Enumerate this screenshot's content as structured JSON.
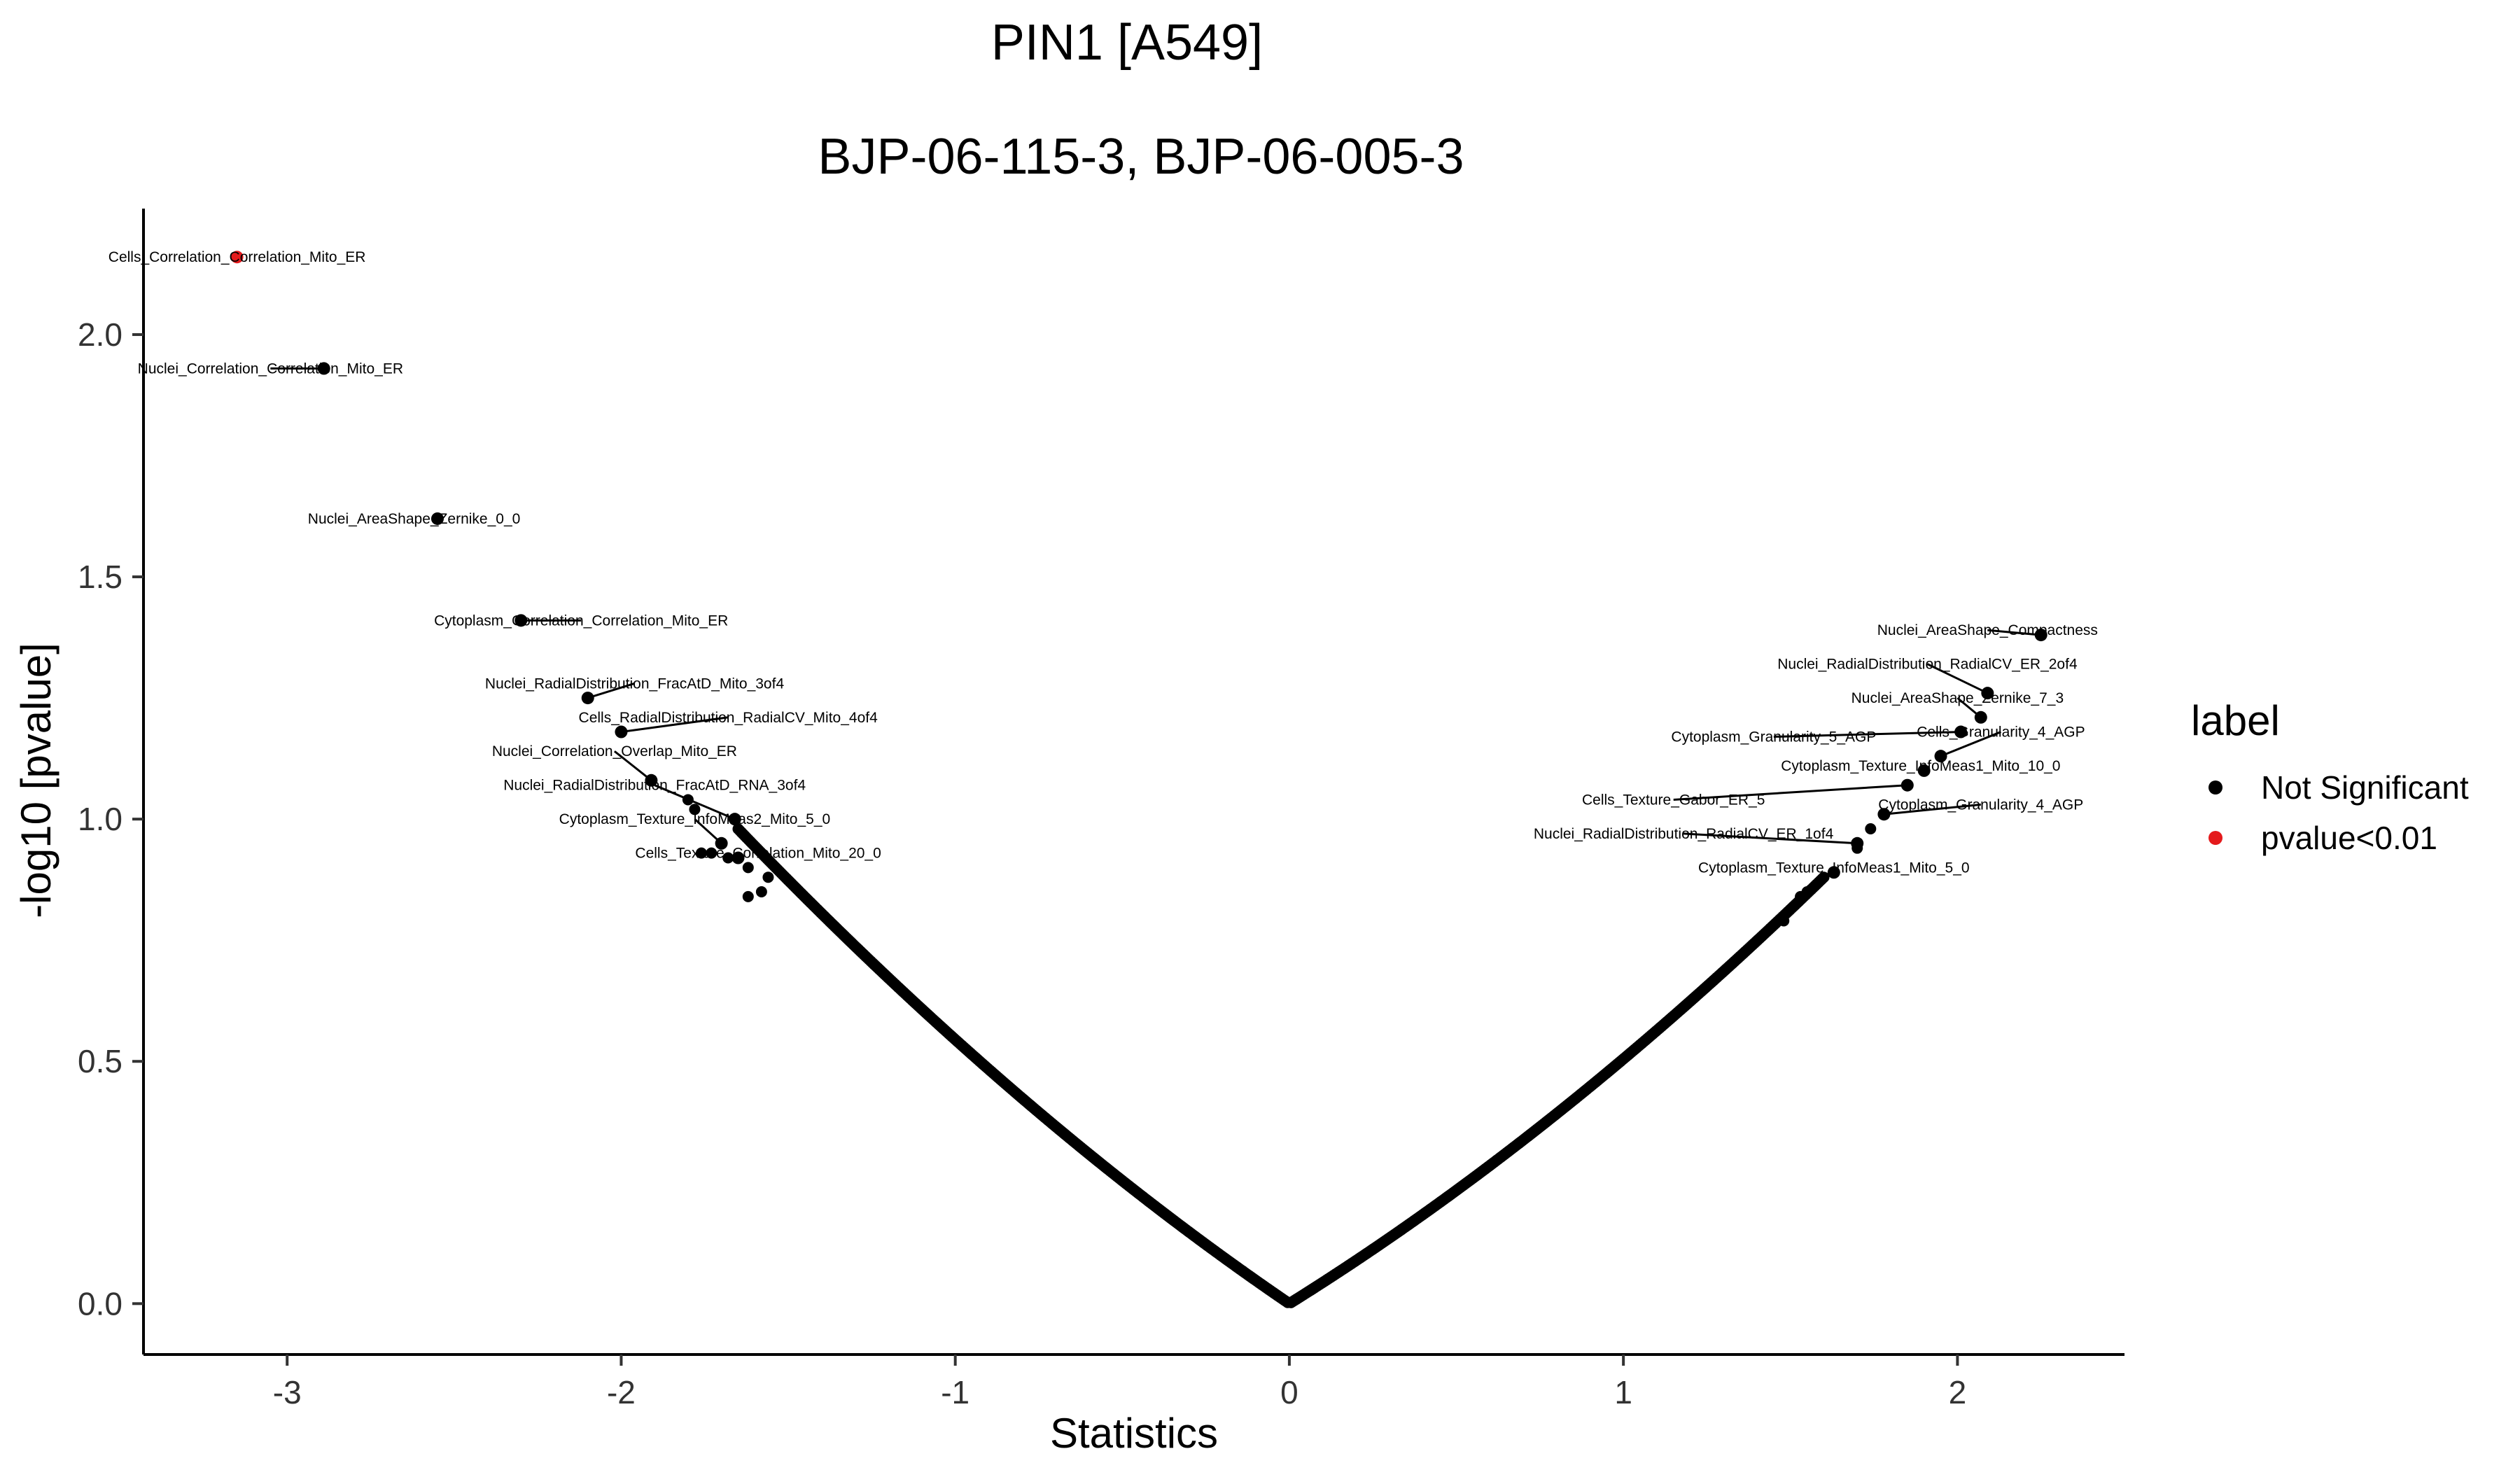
{
  "chart_data": {
    "type": "scatter",
    "title": "PIN1 [A549]",
    "subtitle": "BJP-06-115-3, BJP-06-005-3",
    "xlabel": "Statistics",
    "ylabel": "-log10 [pvalue]",
    "xlim": [
      -3.43,
      2.5
    ],
    "ylim": [
      -0.105,
      2.26
    ],
    "xticks": [
      -3,
      -2,
      -1,
      0,
      1,
      2
    ],
    "yticks": [
      0.0,
      0.5,
      1.0,
      1.5,
      2.0
    ],
    "xtick_labels": [
      "-3",
      "-2",
      "-1",
      "0",
      "1",
      "2"
    ],
    "ytick_labels": [
      "0.0",
      "0.5",
      "1.0",
      "1.5",
      "2.0"
    ],
    "grid": false,
    "legend": {
      "title": "label",
      "position": "right",
      "entries": [
        {
          "name": "Not Significant",
          "color": "#000000"
        },
        {
          "name": "pvalue<0.01",
          "color": "#e41a1c"
        }
      ]
    },
    "curve": {
      "description_key": "dense-points-following-v",
      "left_points_between_x": [
        -1.65,
        -0.005
      ],
      "right_points_between_x": [
        0.005,
        1.6
      ],
      "approx_left_count": 320,
      "approx_right_count": 300
    },
    "labeled_points": [
      {
        "label": "Cells_Correlation_Correlation_Mito_ER",
        "x": -3.15,
        "y": 2.16,
        "group": "pvalue<0.01",
        "lx": -3.15,
        "ly": 2.16
      },
      {
        "label": "Nuclei_Correlation_Correlation_Mito_ER",
        "x": -2.89,
        "y": 1.93,
        "group": "Not Significant",
        "lx": -3.05,
        "ly": 1.93
      },
      {
        "label": "Nuclei_AreaShape_Zernike_0_0",
        "x": -2.55,
        "y": 1.62,
        "group": "Not Significant",
        "lx": -2.62,
        "ly": 1.62
      },
      {
        "label": "Cytoplasm_Correlation_Correlation_Mito_ER",
        "x": -2.3,
        "y": 1.41,
        "group": "Not Significant",
        "lx": -2.12,
        "ly": 1.41
      },
      {
        "label": "Nuclei_RadialDistribution_FracAtD_Mito_3of4",
        "x": -2.1,
        "y": 1.25,
        "group": "Not Significant",
        "lx": -1.96,
        "ly": 1.28
      },
      {
        "label": "Cells_RadialDistribution_RadialCV_Mito_4of4",
        "x": -2.0,
        "y": 1.18,
        "group": "Not Significant",
        "lx": -1.68,
        "ly": 1.21
      },
      {
        "label": "Nuclei_Correlation_Overlap_Mito_ER",
        "x": -1.91,
        "y": 1.08,
        "group": "Not Significant",
        "lx": -2.02,
        "ly": 1.14
      },
      {
        "label": "Nuclei_RadialDistribution_FracAtD_RNA_3of4",
        "x": -1.66,
        "y": 1.0,
        "group": "Not Significant",
        "lx": -1.9,
        "ly": 1.07
      },
      {
        "label": "Cytoplasm_Texture_InfoMeas2_Mito_5_0",
        "x": -1.7,
        "y": 0.95,
        "group": "Not Significant",
        "lx": -1.78,
        "ly": 1.0
      },
      {
        "label": "Cells_Texture_Correlation_Mito_20_0",
        "x": -1.65,
        "y": 0.92,
        "group": "Not Significant",
        "lx": -1.59,
        "ly": 0.93
      },
      {
        "label": "Nuclei_AreaShape_Compactness",
        "x": 2.25,
        "y": 1.38,
        "group": "Not Significant",
        "lx": 2.09,
        "ly": 1.39
      },
      {
        "label": "Nuclei_RadialDistribution_RadialCV_ER_2of4",
        "x": 2.09,
        "y": 1.26,
        "group": "Not Significant",
        "lx": 1.91,
        "ly": 1.32
      },
      {
        "label": "Nuclei_AreaShape_Zernike_7_3",
        "x": 2.07,
        "y": 1.21,
        "group": "Not Significant",
        "lx": 2.0,
        "ly": 1.25
      },
      {
        "label": "Cytoplasm_Granularity_5_AGP",
        "x": 2.01,
        "y": 1.18,
        "group": "Not Significant",
        "lx": 1.45,
        "ly": 1.17
      },
      {
        "label": "Cells_Granularity_4_AGP",
        "x": 1.95,
        "y": 1.13,
        "group": "Not Significant",
        "lx": 2.13,
        "ly": 1.18
      },
      {
        "label": "Cytoplasm_Texture_InfoMeas1_Mito_10_0",
        "x": 1.9,
        "y": 1.1,
        "group": "Not Significant",
        "lx": 1.89,
        "ly": 1.11
      },
      {
        "label": "Cells_Texture_Gabor_ER_5",
        "x": 1.85,
        "y": 1.07,
        "group": "Not Significant",
        "lx": 1.15,
        "ly": 1.04
      },
      {
        "label": "Cytoplasm_Granularity_4_AGP",
        "x": 1.78,
        "y": 1.01,
        "group": "Not Significant",
        "lx": 2.07,
        "ly": 1.03
      },
      {
        "label": "Nuclei_RadialDistribution_RadialCV_ER_1of4",
        "x": 1.7,
        "y": 0.95,
        "group": "Not Significant",
        "lx": 1.18,
        "ly": 0.97
      },
      {
        "label": "Cytoplasm_Texture_InfoMeas1_Mito_5_0",
        "x": 1.63,
        "y": 0.89,
        "group": "Not Significant",
        "lx": 1.63,
        "ly": 0.9
      }
    ],
    "extra_points": [
      {
        "x": -1.8,
        "y": 1.04
      },
      {
        "x": -1.78,
        "y": 1.02
      },
      {
        "x": -1.76,
        "y": 0.93
      },
      {
        "x": -1.73,
        "y": 0.93
      },
      {
        "x": -1.68,
        "y": 0.92
      },
      {
        "x": -1.62,
        "y": 0.9
      },
      {
        "x": -1.62,
        "y": 0.84
      },
      {
        "x": -1.58,
        "y": 0.85
      },
      {
        "x": -1.56,
        "y": 0.88
      },
      {
        "x": 1.53,
        "y": 0.84
      },
      {
        "x": 1.55,
        "y": 0.85
      },
      {
        "x": 1.48,
        "y": 0.79
      },
      {
        "x": 1.7,
        "y": 0.94
      },
      {
        "x": 1.74,
        "y": 0.98
      }
    ]
  }
}
